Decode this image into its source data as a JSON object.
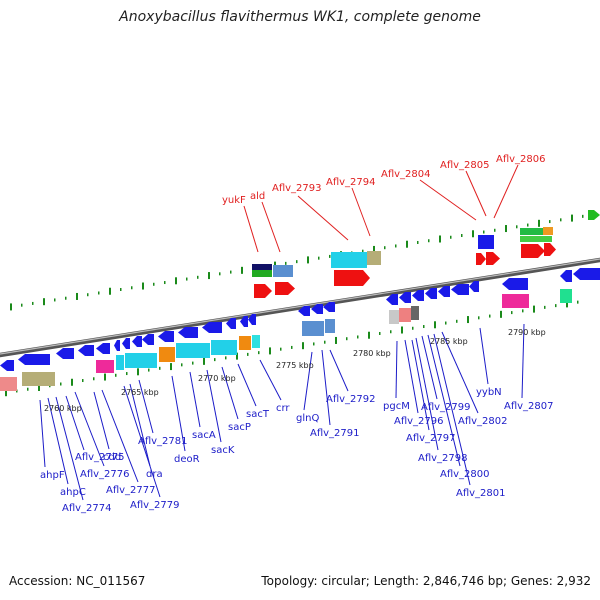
{
  "title": "Anoxybacillus flavithermus WK1, complete genome",
  "accession": "Accession: NC_011567",
  "topology": "Topology: circular; Length: 2,846,746 bp; Genes: 2,932",
  "scale_labels": [
    "2760 kbp",
    "2765 kbp",
    "2770 kbp",
    "2775 kbp",
    "2780 kbp",
    "2785 kbp",
    "2790 kbp"
  ],
  "colors": {
    "gene_blue": "#1a1ae8",
    "red_gene": "#ee1111",
    "cyan": "#22d0e8",
    "tick_green": "#1a8a1a",
    "label_blue": "#1c1cc8",
    "label_red": "#e02020"
  },
  "top_labels": [
    "yukF",
    "ald",
    "Aflv_2793",
    "Aflv_2794",
    "Aflv_2804",
    "Aflv_2805",
    "Aflv_2806"
  ],
  "bottom_labels": [
    "ahpF",
    "ahpC",
    "Aflv_2774",
    "Aflv_2775",
    "Aflv_2776",
    "cdd",
    "Aflv_2777",
    "dra",
    "Aflv_2779",
    "Aflv_2781",
    "deoR",
    "sacA",
    "sacK",
    "sacP",
    "sacT",
    "crr",
    "glnQ",
    "Aflv_2791",
    "Aflv_2792",
    "pgcM",
    "Aflv_2796",
    "Aflv_2797",
    "Aflv_2798",
    "Aflv_2799",
    "Aflv_2800",
    "Aflv_2801",
    "Aflv_2802",
    "yybN",
    "Aflv_2807"
  ]
}
